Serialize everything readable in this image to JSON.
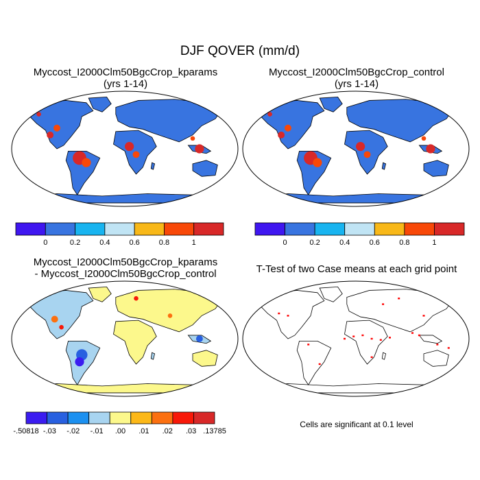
{
  "title": "DJF QOVER (mm/d)",
  "panels": {
    "p1": {
      "title_line1": "Myccost_I2000Clm50BgcCrop_kparams",
      "title_line2": "(yrs 1-14)"
    },
    "p2": {
      "title_line1": "Myccost_I2000Clm50BgcCrop_control",
      "title_line2": "(yrs 1-14)"
    },
    "p3": {
      "title_line1": "Myccost_I2000Clm50BgcCrop_kparams",
      "title_line2": "- Myccost_I2000Clm50BgcCrop_control"
    },
    "p4": {
      "title_line1": "T-Test of two Case means at each grid point",
      "note": "Cells are significant at 0.1 level"
    }
  },
  "chart_data": [
    {
      "type": "heatmap",
      "title": "Myccost_I2000Clm50BgcCrop_kparams (yrs 1-14)",
      "projection": "Robinson world map",
      "colorbar": {
        "colors": [
          "#3f16f0",
          "#3874e0",
          "#18b4f0",
          "#c0e4f4",
          "#f8b818",
          "#f84808",
          "#d82828"
        ],
        "tick_labels": [
          "0",
          "0.2",
          "0.4",
          "0.6",
          "0.8",
          "1"
        ]
      }
    },
    {
      "type": "heatmap",
      "title": "Myccost_I2000Clm50BgcCrop_control (yrs 1-14)",
      "projection": "Robinson world map",
      "colorbar": {
        "colors": [
          "#3f16f0",
          "#3874e0",
          "#18b4f0",
          "#c0e4f4",
          "#f8b818",
          "#f84808",
          "#d82828"
        ],
        "tick_labels": [
          "0",
          "0.2",
          "0.4",
          "0.6",
          "0.8",
          "1"
        ]
      }
    },
    {
      "type": "heatmap",
      "title": "Myccost_I2000Clm50BgcCrop_kparams - Myccost_I2000Clm50BgcCrop_control",
      "projection": "Robinson world map",
      "colorbar": {
        "colors": [
          "#3b1cf0",
          "#2860e0",
          "#1c90f0",
          "#a8d4f0",
          "#fcf88c",
          "#fcb818",
          "#fc7010",
          "#f81808",
          "#d82828"
        ],
        "tick_labels": [
          "-.50818",
          "-.03",
          "-.02",
          "-.01",
          ".00",
          ".01",
          ".02",
          ".03",
          ".13785"
        ]
      }
    },
    {
      "type": "heatmap",
      "title": "T-Test of two Case means at each grid point",
      "projection": "Robinson world map",
      "significance_level": 0.1,
      "significant_color": "#ff0000"
    }
  ]
}
